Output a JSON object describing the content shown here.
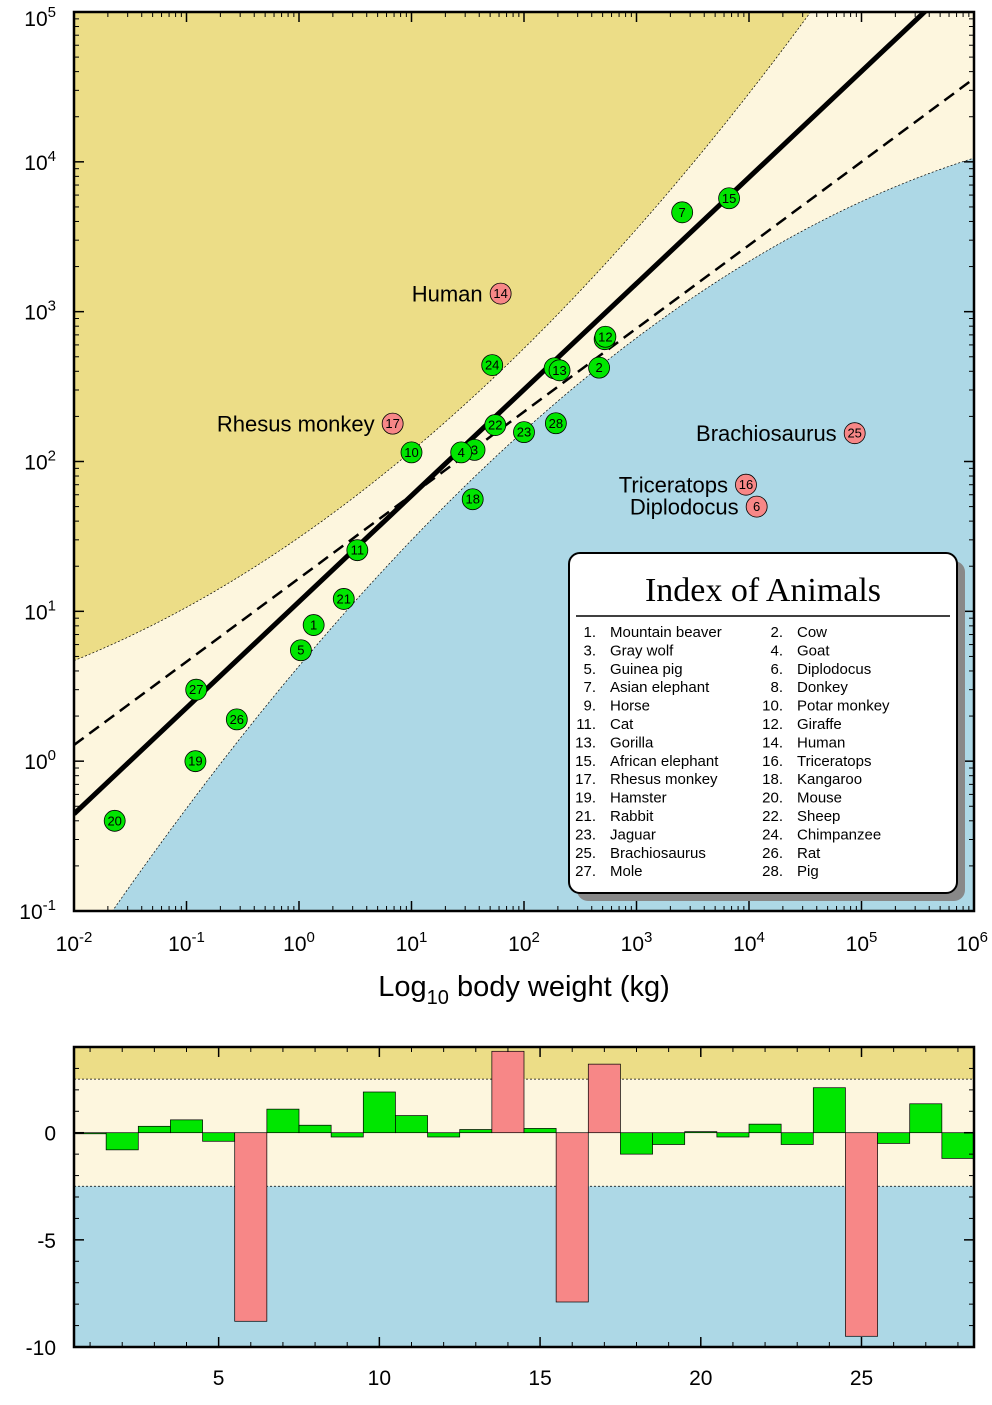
{
  "chart_data": [
    {
      "type": "scatter",
      "xscale": "log",
      "yscale": "log",
      "xlim": [
        0.01,
        1000000
      ],
      "ylim": [
        0.1,
        100000
      ],
      "x_tick_labels": [
        "10^-2",
        "10^-1",
        "10^0",
        "10^1",
        "10^2",
        "10^3",
        "10^4",
        "10^5",
        "10^6"
      ],
      "y_tick_labels": [
        "10^-1",
        "10^0",
        "10^1",
        "10^2",
        "10^3",
        "10^4",
        "10^5"
      ],
      "xlabel_base": "Log",
      "xlabel_sub": "10",
      "xlabel_rest": " body weight (kg)",
      "ylabel": "",
      "fit_line": {
        "a": 0.708,
        "b": 1.064,
        "style": "solid-thick"
      },
      "alt_line": {
        "a": 0.556,
        "b": 1.22,
        "style": "dashed"
      },
      "colors": {
        "upper_region": "#ecdd87",
        "band": "#fdf6de",
        "lower_region": "#add8e6",
        "normal_point": "#00e600",
        "outlier_point": "#f78787"
      },
      "points": [
        {
          "id": "1",
          "x": 1.35,
          "y": 8.1,
          "outlier": false
        },
        {
          "id": "2",
          "x": 465,
          "y": 423,
          "outlier": false
        },
        {
          "id": "3",
          "x": 36.33,
          "y": 119.5,
          "outlier": false
        },
        {
          "id": "4",
          "x": 27.66,
          "y": 115,
          "outlier": false
        },
        {
          "id": "5",
          "x": 1.04,
          "y": 5.5,
          "outlier": false
        },
        {
          "id": "6",
          "x": 11700,
          "y": 50,
          "outlier": true
        },
        {
          "id": "7",
          "x": 2547,
          "y": 4603,
          "outlier": false
        },
        {
          "id": "8",
          "x": 187.1,
          "y": 419,
          "outlier": false
        },
        {
          "id": "9",
          "x": 521,
          "y": 655,
          "outlier": false
        },
        {
          "id": "10",
          "x": 10,
          "y": 115,
          "outlier": false
        },
        {
          "id": "11",
          "x": 3.3,
          "y": 25.6,
          "outlier": false
        },
        {
          "id": "12",
          "x": 529,
          "y": 680,
          "outlier": false
        },
        {
          "id": "13",
          "x": 207,
          "y": 406,
          "outlier": false
        },
        {
          "id": "14",
          "x": 62,
          "y": 1320,
          "outlier": true
        },
        {
          "id": "15",
          "x": 6654,
          "y": 5712,
          "outlier": false
        },
        {
          "id": "16",
          "x": 9400,
          "y": 70,
          "outlier": true
        },
        {
          "id": "17",
          "x": 6.8,
          "y": 179,
          "outlier": true
        },
        {
          "id": "18",
          "x": 35,
          "y": 56,
          "outlier": false
        },
        {
          "id": "19",
          "x": 0.12,
          "y": 1,
          "outlier": false
        },
        {
          "id": "20",
          "x": 0.023,
          "y": 0.4,
          "outlier": false
        },
        {
          "id": "21",
          "x": 2.5,
          "y": 12.1,
          "outlier": false
        },
        {
          "id": "22",
          "x": 55.5,
          "y": 175,
          "outlier": false
        },
        {
          "id": "23",
          "x": 100,
          "y": 157,
          "outlier": false
        },
        {
          "id": "24",
          "x": 52.16,
          "y": 440,
          "outlier": false
        },
        {
          "id": "25",
          "x": 87000,
          "y": 154.5,
          "outlier": true
        },
        {
          "id": "26",
          "x": 0.28,
          "y": 1.9,
          "outlier": false
        },
        {
          "id": "27",
          "x": 0.122,
          "y": 3,
          "outlier": false
        },
        {
          "id": "28",
          "x": 192,
          "y": 180,
          "outlier": false
        }
      ],
      "named_points": [
        {
          "id": "14",
          "name": "Human"
        },
        {
          "id": "17",
          "name": "Rhesus monkey"
        },
        {
          "id": "25",
          "name": "Brachiosaurus"
        },
        {
          "id": "16",
          "name": "Triceratops"
        },
        {
          "id": "6",
          "name": "Diplodocus"
        }
      ],
      "legend": {
        "title": "Index of Animals",
        "placement": "bottom-right",
        "items": [
          "1.  Mountain beaver",
          "2.  Cow",
          "3.  Gray wolf",
          "4.  Goat",
          "5.  Guinea pig",
          "6.  Diplodocus",
          "7.  Asian elephant",
          "8.  Donkey",
          "9.  Horse",
          "10.  Potar monkey",
          "11.  Cat",
          "12.  Giraffe",
          "13.  Gorilla",
          "14.  Human",
          "15.  African elephant",
          "16.  Triceratops",
          "17.  Rhesus monkey",
          "18.  Kangaroo",
          "19.  Hamster",
          "20.  Mouse",
          "21.  Rabbit",
          "22.  Sheep",
          "23.  Jaguar",
          "24.  Chimpanzee",
          "25.  Brachiosaurus",
          "26.  Rat",
          "27.  Mole",
          "28.  Pig"
        ]
      }
    },
    {
      "type": "bar",
      "xlim": [
        0.5,
        28.5
      ],
      "ylim": [
        -10,
        4
      ],
      "band_limits": [
        -2.5,
        2.5
      ],
      "x_tick_labels": [
        "5",
        "10",
        "15",
        "20",
        "25"
      ],
      "y_tick_labels": [
        "0",
        "-5",
        "-10"
      ],
      "xlabel": "",
      "ylabel": "",
      "colors": {
        "upper_region": "#ecdd87",
        "band": "#fdf6de",
        "lower_region": "#add8e6",
        "normal_bar": "#00e600",
        "outlier_bar": "#f78787"
      },
      "categories": [
        1,
        2,
        3,
        4,
        5,
        6,
        7,
        8,
        9,
        10,
        11,
        12,
        13,
        14,
        15,
        16,
        17,
        18,
        19,
        20,
        21,
        22,
        23,
        24,
        25,
        26,
        27,
        28
      ],
      "values": [
        -0.05,
        -0.8,
        0.3,
        0.6,
        -0.4,
        -8.8,
        1.1,
        0.35,
        -0.2,
        1.9,
        0.8,
        -0.2,
        0.15,
        3.8,
        0.2,
        -7.9,
        3.2,
        -1.0,
        -0.55,
        0.05,
        -0.2,
        0.4,
        -0.55,
        2.1,
        -9.5,
        -0.5,
        1.35,
        -1.2
      ],
      "outliers": [
        6,
        14,
        16,
        17,
        25
      ]
    }
  ]
}
